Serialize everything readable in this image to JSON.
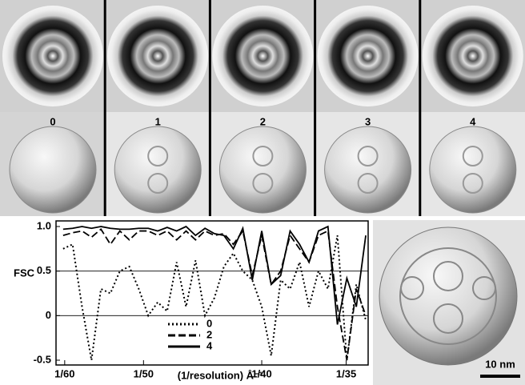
{
  "panel_labels": [
    "0",
    "1",
    "2",
    "3",
    "4"
  ],
  "scale_bar": "10 nm",
  "chart_data": {
    "type": "line",
    "x_label": "(1/resolution) Å⁻¹",
    "y_label": "FSC",
    "x": [
      0.0166,
      0.017,
      0.0174,
      0.0178,
      0.0182,
      0.0186,
      0.019,
      0.0194,
      0.0198,
      0.0202,
      0.0206,
      0.021,
      0.0214,
      0.0218,
      0.0222,
      0.0226,
      0.023,
      0.0234,
      0.0238,
      0.0242,
      0.0246,
      0.025,
      0.0254,
      0.0258,
      0.0262,
      0.0266,
      0.027,
      0.0274,
      0.0278,
      0.0282,
      0.0286,
      0.029,
      0.0294
    ],
    "series": [
      {
        "name": "0",
        "color": "#000000",
        "dash": "dotted",
        "values": [
          0.75,
          0.8,
          0.1,
          -0.5,
          0.3,
          0.25,
          0.5,
          0.55,
          0.3,
          0.0,
          0.15,
          0.05,
          0.6,
          0.1,
          0.62,
          0.0,
          0.2,
          0.55,
          0.7,
          0.5,
          0.4,
          0.1,
          -0.45,
          0.4,
          0.3,
          0.6,
          0.1,
          0.5,
          0.3,
          0.9,
          -0.5,
          0.35,
          -0.05
        ]
      },
      {
        "name": "2",
        "color": "#000000",
        "dash": "dashed",
        "values": [
          0.9,
          0.93,
          0.95,
          0.88,
          0.97,
          0.8,
          0.95,
          0.85,
          0.95,
          0.95,
          0.9,
          0.95,
          0.85,
          0.95,
          0.85,
          0.95,
          0.9,
          0.92,
          0.8,
          0.95,
          0.45,
          0.9,
          0.35,
          0.5,
          0.9,
          0.75,
          0.6,
          0.9,
          0.95,
          0.1,
          -0.5,
          0.3,
          0.0
        ]
      },
      {
        "name": "4",
        "color": "#000000",
        "dash": "solid",
        "values": [
          0.97,
          0.98,
          1.0,
          0.98,
          1.0,
          0.98,
          0.97,
          0.97,
          0.98,
          0.98,
          0.95,
          0.99,
          0.95,
          1.0,
          0.9,
          0.98,
          0.92,
          0.9,
          0.75,
          0.98,
          0.4,
          0.95,
          0.35,
          0.45,
          0.95,
          0.8,
          0.6,
          0.95,
          1.0,
          -0.1,
          0.42,
          0.1,
          0.9
        ]
      }
    ],
    "xlim": [
      0.0163,
      0.0295
    ],
    "xticks": [
      {
        "value": 0.016667,
        "label": "1/60"
      },
      {
        "value": 0.02,
        "label": "1/50"
      },
      {
        "value": 0.025,
        "label": "1/40"
      },
      {
        "value": 0.028571,
        "label": "1/35"
      }
    ],
    "ylim": [
      -0.5,
      1.0
    ],
    "yticks": [
      -0.5,
      0,
      0.5,
      {
        "value": 1.0,
        "label": "1.0"
      }
    ],
    "grid_lines": [
      0,
      0.5
    ],
    "legend": "lower center"
  }
}
